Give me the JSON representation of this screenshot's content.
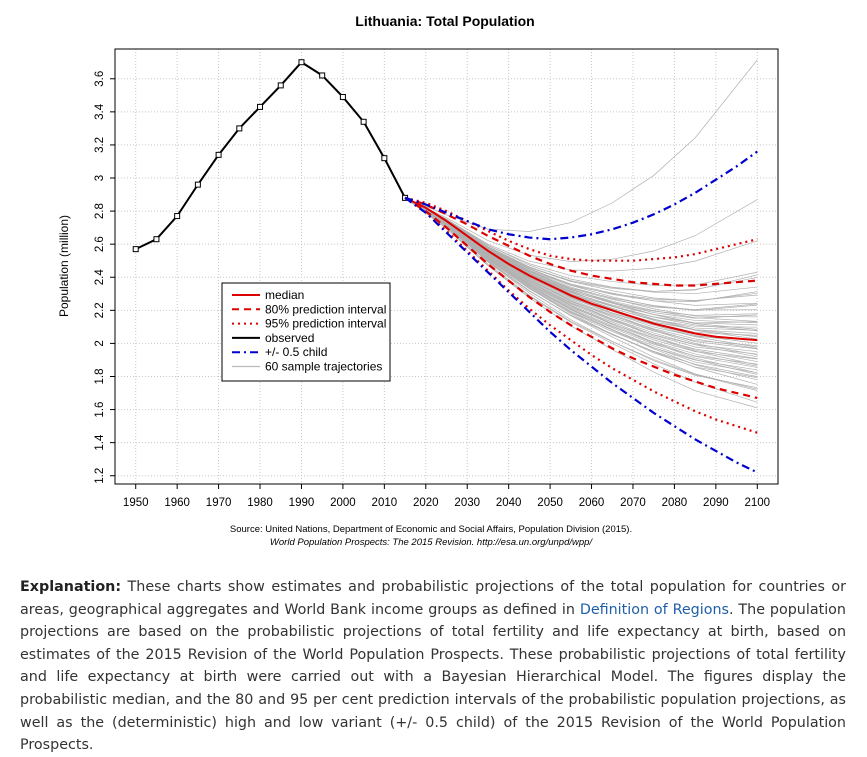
{
  "chart_data": {
    "type": "line",
    "title": "Lithuania: Total Population",
    "ylabel": "Population (million)",
    "xlabel": "",
    "x_ticks": [
      1950,
      1960,
      1970,
      1980,
      1990,
      2000,
      2010,
      2020,
      2030,
      2040,
      2050,
      2060,
      2070,
      2080,
      2090,
      2100
    ],
    "y_ticks": [
      1.2,
      1.4,
      1.6,
      1.8,
      2,
      2.2,
      2.4,
      2.6,
      2.8,
      3,
      3.2,
      3.4,
      3.6
    ],
    "y_tick_labels": [
      "1.2",
      "1.4",
      "1.6",
      "1.8",
      "2",
      "2.2",
      "2.4",
      "2.6",
      "2.8",
      "3",
      "3.2",
      "3.4",
      "3.6"
    ],
    "xlim": [
      1945,
      2105
    ],
    "ylim": [
      1.15,
      3.78
    ],
    "grid": true,
    "legend_placement": "left-center",
    "legend": [
      {
        "label": "median",
        "color": "#dd0000",
        "style": "solid"
      },
      {
        "label": "80% prediction interval",
        "color": "#dd0000",
        "style": "dashed"
      },
      {
        "label": "95% prediction interval",
        "color": "#dd0000",
        "style": "dotted"
      },
      {
        "label": "observed",
        "color": "#000000",
        "style": "solid"
      },
      {
        "label": "+/- 0.5 child",
        "color": "#0000cc",
        "style": "dashdot"
      },
      {
        "label": "60 sample trajectories",
        "color": "#bbbbbb",
        "style": "solid"
      }
    ],
    "series": [
      {
        "name": "observed",
        "color": "#000000",
        "style": "solid-points",
        "x": [
          1950,
          1955,
          1960,
          1965,
          1970,
          1975,
          1980,
          1985,
          1990,
          1995,
          2000,
          2005,
          2010,
          2015
        ],
        "y": [
          2.57,
          2.63,
          2.77,
          2.96,
          3.14,
          3.3,
          3.43,
          3.56,
          3.7,
          3.62,
          3.49,
          3.34,
          3.12,
          2.88
        ]
      },
      {
        "name": "median",
        "color": "#dd0000",
        "style": "solid",
        "x": [
          2015,
          2020,
          2025,
          2030,
          2035,
          2040,
          2045,
          2050,
          2055,
          2060,
          2065,
          2070,
          2075,
          2080,
          2085,
          2090,
          2095,
          2100
        ],
        "y": [
          2.88,
          2.82,
          2.74,
          2.65,
          2.56,
          2.48,
          2.41,
          2.35,
          2.29,
          2.24,
          2.2,
          2.16,
          2.12,
          2.09,
          2.06,
          2.04,
          2.03,
          2.02
        ]
      },
      {
        "name": "80% upper",
        "color": "#dd0000",
        "style": "dashed",
        "x": [
          2015,
          2020,
          2025,
          2030,
          2035,
          2040,
          2045,
          2050,
          2055,
          2060,
          2065,
          2070,
          2075,
          2080,
          2085,
          2090,
          2095,
          2100
        ],
        "y": [
          2.88,
          2.84,
          2.78,
          2.72,
          2.65,
          2.59,
          2.53,
          2.48,
          2.44,
          2.41,
          2.39,
          2.37,
          2.36,
          2.35,
          2.35,
          2.36,
          2.37,
          2.38
        ]
      },
      {
        "name": "80% lower",
        "color": "#dd0000",
        "style": "dashed",
        "x": [
          2015,
          2020,
          2025,
          2030,
          2035,
          2040,
          2045,
          2050,
          2055,
          2060,
          2065,
          2070,
          2075,
          2080,
          2085,
          2090,
          2095,
          2100
        ],
        "y": [
          2.88,
          2.8,
          2.7,
          2.59,
          2.48,
          2.38,
          2.28,
          2.19,
          2.11,
          2.04,
          1.97,
          1.91,
          1.86,
          1.81,
          1.77,
          1.73,
          1.7,
          1.67
        ]
      },
      {
        "name": "95% upper",
        "color": "#dd0000",
        "style": "dotted",
        "x": [
          2015,
          2020,
          2025,
          2030,
          2035,
          2040,
          2045,
          2050,
          2055,
          2060,
          2065,
          2070,
          2075,
          2080,
          2085,
          2090,
          2095,
          2100
        ],
        "y": [
          2.88,
          2.85,
          2.8,
          2.74,
          2.68,
          2.62,
          2.57,
          2.53,
          2.51,
          2.5,
          2.5,
          2.5,
          2.51,
          2.52,
          2.54,
          2.57,
          2.6,
          2.63
        ]
      },
      {
        "name": "95% lower",
        "color": "#dd0000",
        "style": "dotted",
        "x": [
          2015,
          2020,
          2025,
          2030,
          2035,
          2040,
          2045,
          2050,
          2055,
          2060,
          2065,
          2070,
          2075,
          2080,
          2085,
          2090,
          2095,
          2100
        ],
        "y": [
          2.88,
          2.79,
          2.68,
          2.56,
          2.44,
          2.32,
          2.21,
          2.11,
          2.02,
          1.93,
          1.85,
          1.78,
          1.71,
          1.65,
          1.59,
          1.54,
          1.5,
          1.46
        ]
      },
      {
        "name": "+0.5 child",
        "color": "#0000cc",
        "style": "dashdot",
        "x": [
          2015,
          2020,
          2025,
          2030,
          2035,
          2040,
          2045,
          2050,
          2055,
          2060,
          2065,
          2070,
          2075,
          2080,
          2085,
          2090,
          2095,
          2100
        ],
        "y": [
          2.88,
          2.84,
          2.79,
          2.74,
          2.69,
          2.66,
          2.64,
          2.63,
          2.64,
          2.66,
          2.69,
          2.73,
          2.78,
          2.84,
          2.91,
          2.99,
          3.07,
          3.16
        ]
      },
      {
        "name": "-0.5 child",
        "color": "#0000cc",
        "style": "dashdot",
        "x": [
          2015,
          2020,
          2025,
          2030,
          2035,
          2040,
          2045,
          2050,
          2055,
          2060,
          2065,
          2070,
          2075,
          2080,
          2085,
          2090,
          2095,
          2100
        ],
        "y": [
          2.88,
          2.79,
          2.67,
          2.55,
          2.43,
          2.31,
          2.19,
          2.07,
          1.96,
          1.86,
          1.76,
          1.67,
          1.58,
          1.5,
          1.42,
          1.35,
          1.28,
          1.22
        ]
      }
    ],
    "sample_trajectories": {
      "count": 60,
      "x": [
        2015,
        2025,
        2035,
        2045,
        2055,
        2065,
        2075,
        2085,
        2100
      ],
      "y_endpoints_2100": [
        3.72,
        2.85,
        2.62,
        2.45,
        2.41,
        2.38,
        2.35,
        2.32,
        2.3,
        2.28,
        2.26,
        2.24,
        2.22,
        2.2,
        2.18,
        2.17,
        2.16,
        2.14,
        2.13,
        2.12,
        2.11,
        2.1,
        2.09,
        2.08,
        2.07,
        2.06,
        2.05,
        2.04,
        2.03,
        2.02,
        2.01,
        2.0,
        1.99,
        1.98,
        1.97,
        1.96,
        1.95,
        1.94,
        1.93,
        1.92,
        1.91,
        1.9,
        1.89,
        1.88,
        1.87,
        1.86,
        1.85,
        1.84,
        1.83,
        1.82,
        1.81,
        1.8,
        1.79,
        1.78,
        1.76,
        1.74,
        1.72,
        1.7,
        1.66,
        1.62
      ]
    },
    "source_line1": "Source: United Nations, Department of Economic and Social Affairs, Population Division (2015).",
    "source_line2": "World Population Prospects: The 2015 Revision. http://esa.un.org/unpd/wpp/"
  },
  "explanation": {
    "lead": "Explanation:",
    "text_before_link": " These charts show estimates and probabilistic projections of the total population for countries or areas, geographical aggregates and World Bank income groups as defined in ",
    "link_text": "Definition of Regions",
    "text_after_link": ". The population projections are based on the probabilistic projections of total fertility and life expectancy at birth, based on estimates of the 2015 Revision of the World Population Prospects. These probabilistic projections of total fertility and life expectancy at birth were carried out with a Bayesian Hierarchical Model. The figures display the probabilistic median, and the 80 and 95 per cent prediction intervals of the probabilistic population projections, as well as the (deterministic) high and low variant (+/- 0.5 child) of the 2015 Revision of the World Population Prospects."
  }
}
